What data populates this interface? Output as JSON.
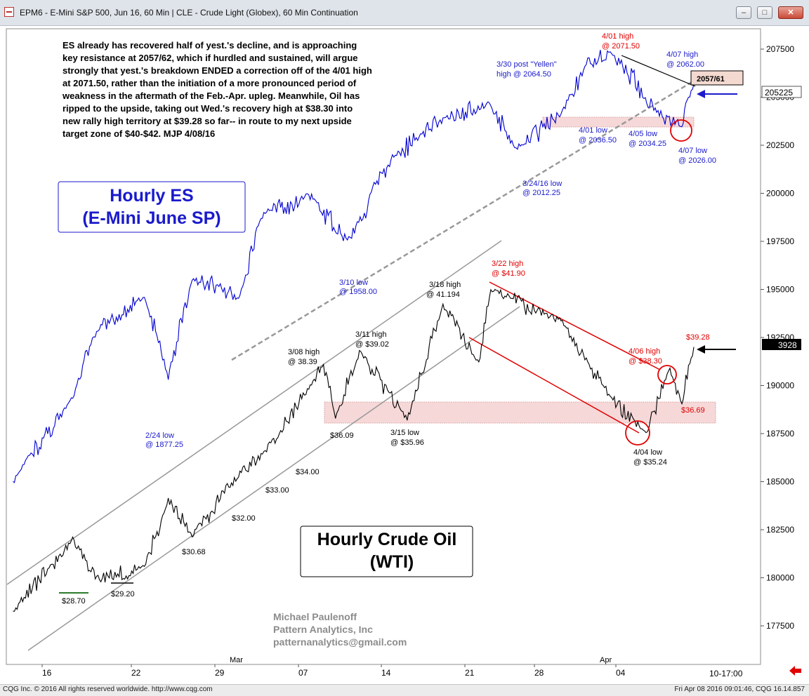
{
  "window": {
    "title": "EPM6 - E-Mini S&P 500, Jun 16, 60 Min  |  CLE - Crude Light (Globex), 60 Min Continuation",
    "min_icon": "minimize-icon",
    "max_icon": "maximize-icon",
    "close_icon": "close-icon"
  },
  "footer": {
    "left": "CQG Inc. © 2016 All rights reserved worldwide. http://www.cqg.com",
    "right": "Fri Apr 08 2016 09:01:46, CQG 16.14.857"
  },
  "commentary": [
    "ES already has recovered half of yest.'s decline, and is approaching",
    "key resistance at 2057/62, which if hurdled and sustained, will argue",
    "strongly that yest.'s breakdown ENDED a correction off of the 4/01 high",
    "at 2071.50, rather than the initiation of a more pronounced period of",
    "weakness in the aftermath of the Feb.-Apr. upleg. Meanwhile, Oil has",
    "ripped to the upside, taking out Wed.'s recovery high at $38.30 into",
    "new rally high territory at $39.28 so far-- in route to my next upside",
    "target zone of $40-$42.  MJP 4/08/16"
  ],
  "es_box": {
    "line1": "Hourly ES",
    "line2": "(E-Mini June SP)"
  },
  "oil_box": {
    "line1": "Hourly Crude Oil",
    "line2": "(WTI)"
  },
  "signature": [
    "Michael Paulenoff",
    "Pattern Analytics, Inc",
    "patternanalytics@gmail.com"
  ],
  "time_readout": "10-17:00",
  "colors": {
    "es_line": "#0000d0",
    "oil_line": "#000000",
    "resistance": "#e00000",
    "channel": "#999999",
    "label_blue": "#1a1acc",
    "label_red": "#e00000"
  },
  "chart_data": [
    {
      "type": "line",
      "name": "ES",
      "title": "Hourly ES",
      "xlabel": "",
      "ylabel": "",
      "x_ticks": [
        "16",
        "22",
        "29",
        "07",
        "14",
        "21",
        "28",
        "04"
      ],
      "month_labels": [
        "Mar",
        "Apr"
      ],
      "ylim": [
        1755,
        2085
      ],
      "y_ticks": [
        "207500",
        "205000",
        "202500",
        "200000",
        "197500",
        "195000",
        "192500",
        "190000",
        "187500",
        "185000",
        "182500",
        "180000",
        "177500"
      ],
      "last_value_tag": "205225",
      "resistance_tag": "2057/61",
      "x": [
        "02-11",
        "02-16",
        "02-18",
        "02-22",
        "02-24",
        "02-26",
        "03-01",
        "03-03",
        "03-07",
        "03-10",
        "03-14",
        "03-16",
        "03-18",
        "03-22",
        "03-24",
        "03-28",
        "03-30",
        "04-01",
        "04-05",
        "04-07",
        "04-08"
      ],
      "values": [
        1815,
        1865,
        1905,
        1925,
        1877.25,
        1935,
        1925,
        1975,
        1985,
        1958,
        2010,
        2020,
        2030,
        2040,
        2012.25,
        2035,
        2064.5,
        2071.5,
        2034.25,
        2026,
        2052.25
      ],
      "annotations": [
        {
          "text": "2/24 low",
          "text2": "@ 1877.25"
        },
        {
          "text": "3/10 low",
          "text2": "@ 1958.00"
        },
        {
          "text": "3/24/16 low",
          "text2": "@ 2012.25"
        },
        {
          "text": "3/30 post \"Yellen\"",
          "text2": "high @ 2064.50"
        },
        {
          "text": "4/01 high",
          "text2": "@ 2071.50"
        },
        {
          "text": "4/01 low",
          "text2": "@ 2036.50"
        },
        {
          "text": "4/05 low",
          "text2": "@ 2034.25"
        },
        {
          "text": "4/07 high",
          "text2": "@ 2062.00"
        },
        {
          "text": "4/07 low",
          "text2": "@ 2026.00"
        }
      ]
    },
    {
      "type": "line",
      "name": "CLE",
      "title": "Hourly Crude Oil",
      "xlabel": "",
      "ylabel": "",
      "last_value_tag": "3928",
      "x": [
        "02-11",
        "02-16",
        "02-18",
        "02-22",
        "02-24",
        "02-26",
        "03-01",
        "03-03",
        "03-07",
        "03-08",
        "03-09",
        "03-11",
        "03-15",
        "03-18",
        "03-21",
        "03-22",
        "03-28",
        "04-01",
        "04-04",
        "04-06",
        "04-07",
        "04-08"
      ],
      "values": [
        27.2,
        30.5,
        28.7,
        29.2,
        32.3,
        30.68,
        33.5,
        34.4,
        37.5,
        38.39,
        36.09,
        39.02,
        35.96,
        41.194,
        38.5,
        41.9,
        40.4,
        37.0,
        35.24,
        38.3,
        36.69,
        39.28
      ],
      "annotations": [
        {
          "text": "$28.70"
        },
        {
          "text": "$29.20"
        },
        {
          "text": "$30.68"
        },
        {
          "text": "$32.00"
        },
        {
          "text": "$33.00"
        },
        {
          "text": "$34.00"
        },
        {
          "text": "$36.09"
        },
        {
          "text": "3/08 high",
          "text2": "@ 38.39"
        },
        {
          "text": "3/11 high",
          "text2": "@ $39.02"
        },
        {
          "text": "3/15 low",
          "text2": "@ $35.96"
        },
        {
          "text": "3/18 high",
          "text2": "@ 41.194"
        },
        {
          "text": "3/22 high",
          "text2": "@ $41.90"
        },
        {
          "text": "4/04 low",
          "text2": "@ $35.24"
        },
        {
          "text": "4/06 high",
          "text2": "@ $38.30"
        },
        {
          "text": "$36.69"
        },
        {
          "text": "$39.28"
        }
      ]
    }
  ]
}
